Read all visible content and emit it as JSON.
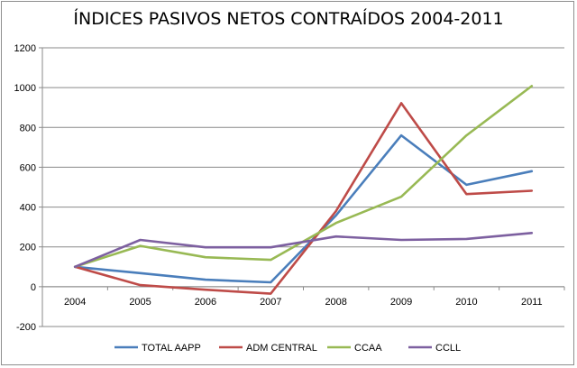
{
  "chart_data": {
    "type": "line",
    "title": "ÍNDICES PASIVOS NETOS CONTRAÍDOS 2004-2011",
    "xlabel": "",
    "ylabel": "",
    "categories": [
      "2004",
      "2005",
      "2006",
      "2007",
      "2008",
      "2009",
      "2010",
      "2011"
    ],
    "ylim": [
      -200,
      1200
    ],
    "yticks": [
      -200,
      0,
      200,
      400,
      600,
      800,
      1000,
      1200
    ],
    "grid": true,
    "legend_position": "bottom",
    "series": [
      {
        "name": "TOTAL AAPP",
        "color": "#4a7ebb",
        "values": [
          100,
          68,
          35,
          22,
          358,
          760,
          512,
          580
        ]
      },
      {
        "name": "ADM CENTRAL",
        "color": "#be4b48",
        "values": [
          100,
          8,
          -15,
          -35,
          380,
          922,
          465,
          482
        ]
      },
      {
        "name": "CCAA",
        "color": "#98b954",
        "values": [
          100,
          205,
          148,
          135,
          320,
          452,
          760,
          1008
        ]
      },
      {
        "name": "CCLL",
        "color": "#7d60a0",
        "values": [
          100,
          235,
          198,
          198,
          252,
          235,
          240,
          270
        ]
      }
    ]
  }
}
